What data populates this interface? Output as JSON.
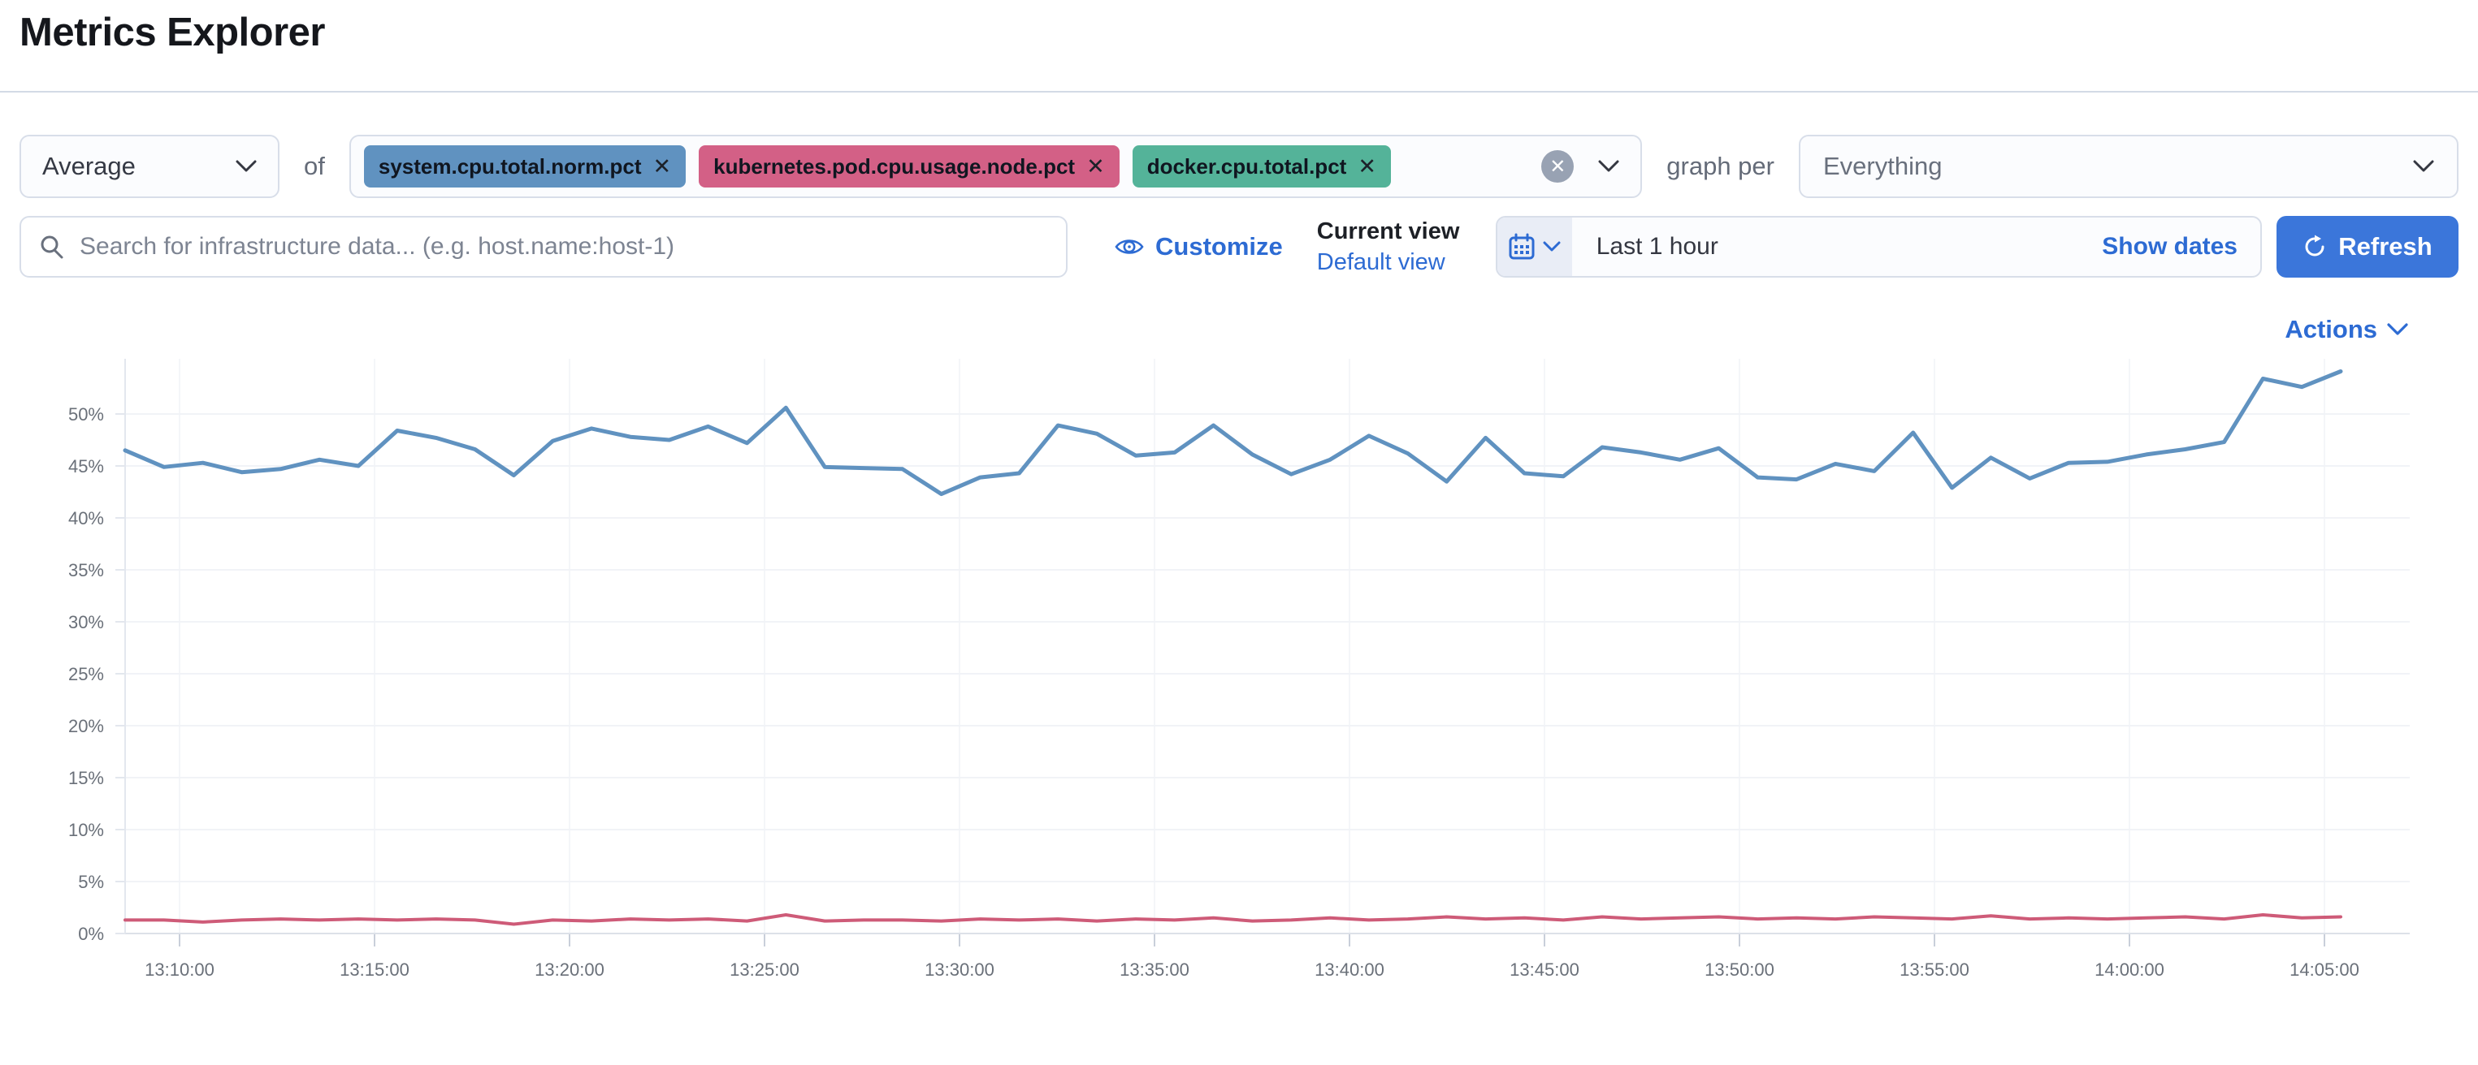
{
  "page": {
    "title": "Metrics Explorer"
  },
  "toolbar": {
    "aggregation": {
      "value": "Average"
    },
    "of_label": "of",
    "metrics": [
      {
        "label": "system.cpu.total.norm.pct",
        "remove": "✕",
        "color": "#6092C0"
      },
      {
        "label": "kubernetes.pod.cpu.usage.node.pct",
        "remove": "✕",
        "color": "#D36086"
      },
      {
        "label": "docker.cpu.total.pct",
        "remove": "✕",
        "color": "#54B399"
      }
    ],
    "clear_label": "✕",
    "graph_per_label": "graph per",
    "group_by": {
      "value": "Everything"
    }
  },
  "filter_bar": {
    "search": {
      "placeholder": "Search for infrastructure data... (e.g. host.name:host-1)"
    },
    "customize_label": "Customize",
    "current_view_label": "Current view",
    "view_name": "Default view",
    "time_range": {
      "value": "Last 1 hour",
      "show_dates_label": "Show dates"
    },
    "refresh_label": "Refresh"
  },
  "actions_label": "Actions",
  "colors": {
    "accent": "#2D6BD3",
    "button": "#3B76DA",
    "series_blue": "#6092C0",
    "series_red": "#CE5B78"
  },
  "chart_data": {
    "type": "line",
    "unit": "%",
    "title": "",
    "xlabel": "",
    "ylabel": "",
    "ylim": [
      0,
      55
    ],
    "grid": true,
    "legend": "none",
    "x_ticks": [
      "13:10:00",
      "13:15:00",
      "13:20:00",
      "13:25:00",
      "13:30:00",
      "13:35:00",
      "13:40:00",
      "13:45:00",
      "13:50:00",
      "13:55:00",
      "14:00:00",
      "14:05:00"
    ],
    "y_ticks": [
      0,
      5,
      10,
      15,
      20,
      25,
      30,
      35,
      40,
      45,
      50
    ],
    "x_start": "13:08:30",
    "x_interval": "1m",
    "series": [
      {
        "name": "Average of system.cpu.total.norm.pct",
        "color": "#6092C0",
        "values": [
          46.5,
          44.9,
          45.3,
          44.4,
          44.7,
          45.6,
          45.0,
          48.4,
          47.7,
          46.6,
          44.1,
          47.4,
          48.6,
          47.8,
          47.5,
          48.8,
          47.2,
          50.6,
          44.9,
          44.8,
          44.7,
          42.3,
          43.9,
          44.3,
          48.9,
          48.1,
          46.0,
          46.3,
          48.9,
          46.1,
          44.2,
          45.6,
          47.9,
          46.2,
          43.5,
          47.7,
          44.3,
          44.0,
          46.8,
          46.3,
          45.6,
          46.7,
          43.9,
          43.7,
          45.2,
          44.5,
          48.2,
          42.9,
          45.8,
          43.8,
          45.3,
          45.4,
          46.1,
          46.6,
          47.3,
          53.4,
          52.6,
          54.1
        ]
      },
      {
        "name": "Average of kubernetes.pod.cpu.usage.node.pct",
        "color": "#CE5B78",
        "values": [
          1.3,
          1.3,
          1.1,
          1.3,
          1.4,
          1.3,
          1.4,
          1.3,
          1.4,
          1.3,
          0.9,
          1.3,
          1.2,
          1.4,
          1.3,
          1.4,
          1.2,
          1.8,
          1.2,
          1.3,
          1.3,
          1.2,
          1.4,
          1.3,
          1.4,
          1.2,
          1.4,
          1.3,
          1.5,
          1.2,
          1.3,
          1.5,
          1.3,
          1.4,
          1.6,
          1.4,
          1.5,
          1.3,
          1.6,
          1.4,
          1.5,
          1.6,
          1.4,
          1.5,
          1.4,
          1.6,
          1.5,
          1.4,
          1.7,
          1.4,
          1.5,
          1.4,
          1.5,
          1.6,
          1.4,
          1.8,
          1.5,
          1.6
        ]
      }
    ]
  }
}
